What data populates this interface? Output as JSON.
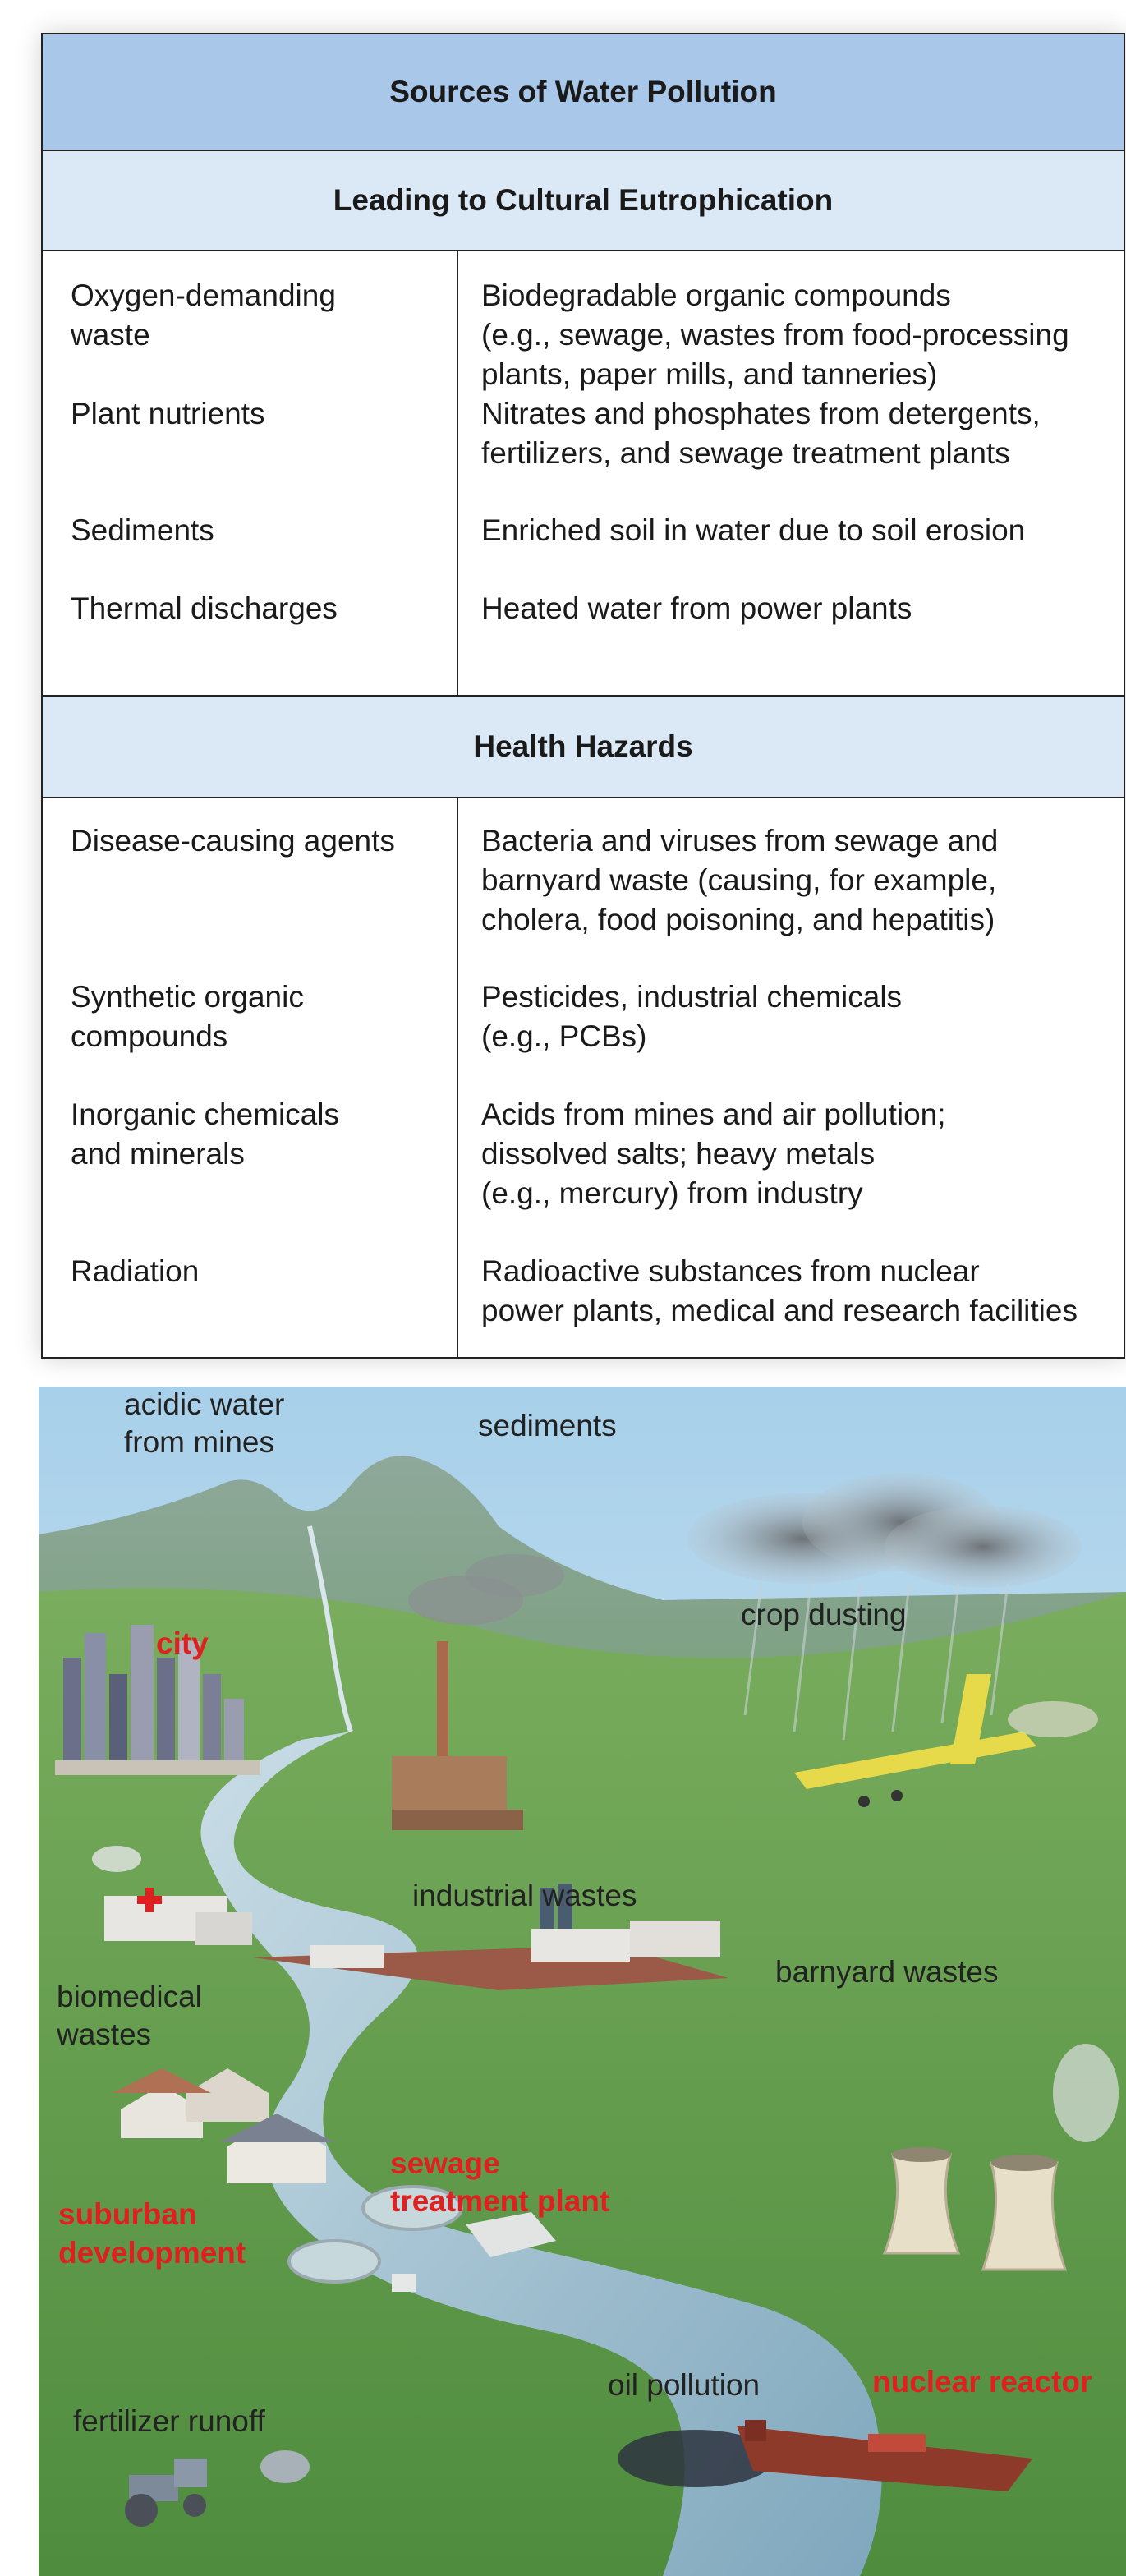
{
  "table": {
    "title": "Sources of Water Pollution",
    "section1": {
      "heading": "Leading to Cultural Eutrophication",
      "rows": [
        {
          "source": "Oxygen-demanding\n  waste",
          "description": "Biodegradable organic compounds\n(e.g., sewage, wastes from food-processing\nplants, paper mills, and tanneries)"
        },
        {
          "source": "Plant nutrients",
          "description": "Nitrates and phosphates from detergents,\nfertilizers, and sewage treatment plants"
        },
        {
          "source": "Sediments",
          "description": "Enriched soil in water due to soil erosion"
        },
        {
          "source": "Thermal discharges",
          "description": "Heated water from power plants"
        }
      ]
    },
    "section2": {
      "heading": "Health Hazards",
      "rows": [
        {
          "source": "Disease-causing agents",
          "description": "Bacteria and viruses from sewage and\nbarnyard waste (causing, for example,\ncholera, food poisoning, and hepatitis)"
        },
        {
          "source": "Synthetic organic\n  compounds",
          "description": "Pesticides, industrial chemicals\n(e.g., PCBs)"
        },
        {
          "source": "Inorganic chemicals\n  and minerals",
          "description": "Acids from mines and air pollution;\ndissolved salts; heavy metals\n(e.g., mercury) from industry"
        },
        {
          "source": "Radiation",
          "description": "Radioactive substances from nuclear\npower plants, medical and research facilities"
        }
      ]
    }
  },
  "illustration": {
    "labels": {
      "acidic_water": [
        "acidic water",
        "from mines"
      ],
      "sediments": "sediments",
      "city": "city",
      "crop_dusting": "crop dusting",
      "industrial_wastes": "industrial wastes",
      "barnyard_wastes": "barnyard wastes",
      "biomedical_wastes": [
        "biomedical",
        "wastes"
      ],
      "sewage_treatment": [
        "sewage",
        "treatment plant"
      ],
      "suburban_development": [
        "suburban",
        "development"
      ],
      "fertilizer_runoff": "fertilizer runoff",
      "oil_pollution": "oil pollution",
      "nuclear_reactor": "nuclear reactor"
    },
    "colors": {
      "sky": "#c9e3f2",
      "grass": "#5f9a4a",
      "river": "#a9c8d6",
      "highlight_label": "#e02020"
    }
  }
}
